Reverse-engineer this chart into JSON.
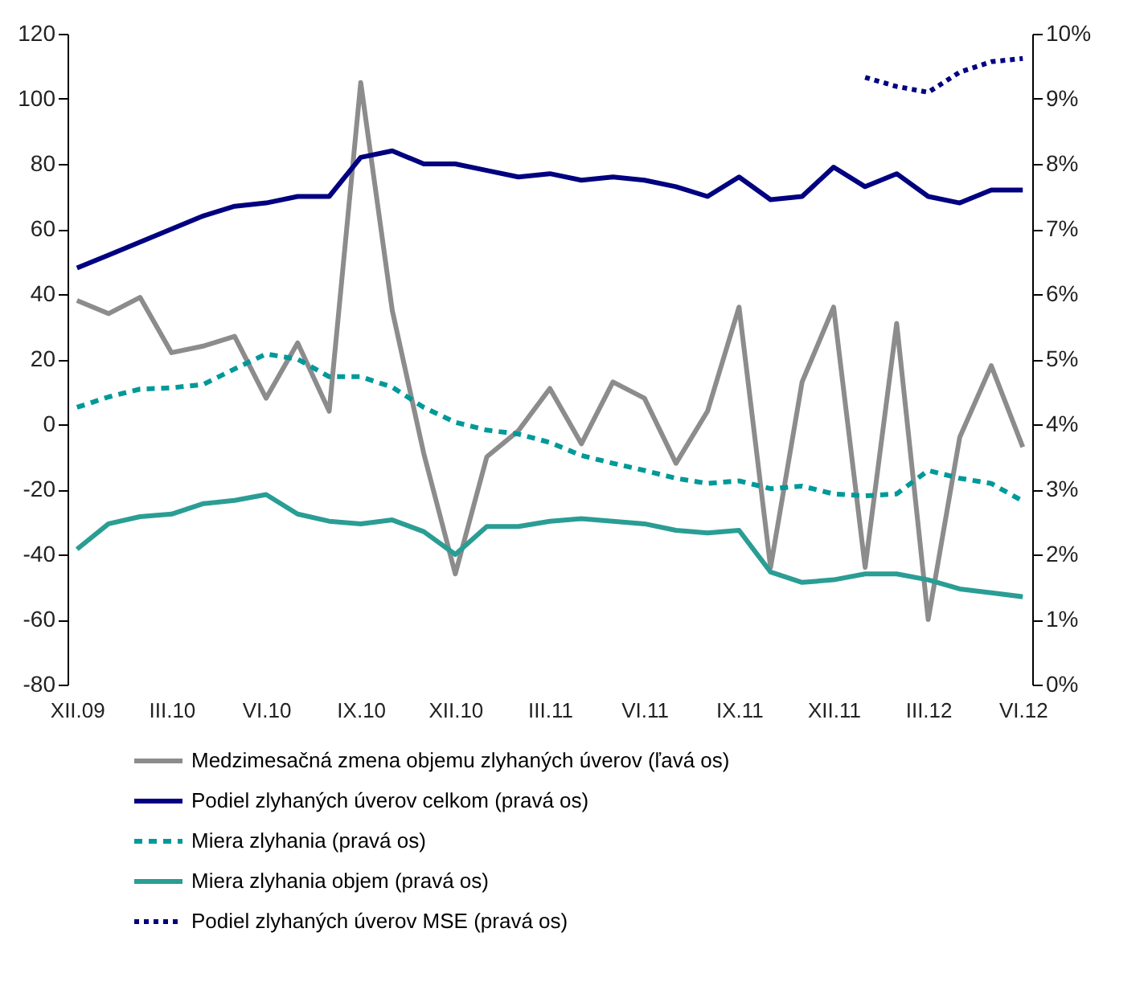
{
  "chart_data": {
    "type": "line",
    "categories": [
      "XII.09",
      null,
      null,
      "III.10",
      null,
      null,
      "VI.10",
      null,
      null,
      "IX.10",
      null,
      null,
      "XII.10",
      null,
      null,
      "III.11",
      null,
      null,
      "VI.11",
      null,
      null,
      "IX.11",
      null,
      null,
      "XII.11",
      null,
      null,
      "III.12",
      null,
      null,
      "VI.12"
    ],
    "series": [
      {
        "name": "Medzimesačná zmena objemu zlyhaných úverov (ľavá os)",
        "color": "#8c8c8c",
        "line_style": "solid",
        "values": [
          38,
          34,
          39,
          22,
          24,
          27,
          8,
          25,
          4,
          105,
          35,
          -9,
          -46,
          -10,
          -2,
          11,
          -6,
          13,
          8,
          -12,
          4,
          36,
          -44,
          13,
          36,
          -44,
          31,
          -60,
          -4,
          18,
          -7
        ]
      },
      {
        "name": "Podiel zlyhaných úverov celkom (pravá os)",
        "color": "#000080",
        "axis": "y2",
        "line_style": "solid",
        "values": [
          6.4,
          6.6,
          6.8,
          7.0,
          7.2,
          7.35,
          7.4,
          7.5,
          7.5,
          8.1,
          8.2,
          8.0,
          8.0,
          7.9,
          7.8,
          7.85,
          7.75,
          7.8,
          7.75,
          7.65,
          7.5,
          7.8,
          7.45,
          7.5,
          7.95,
          7.65,
          7.85,
          7.5,
          7.4,
          7.6,
          7.6
        ]
      },
      {
        "name": "Miera zlyhania (pravá os)",
        "color": "#009999",
        "axis": "y2",
        "line_style": "dashed",
        "values": [
          4.26,
          4.42,
          4.54,
          4.56,
          4.61,
          4.85,
          5.08,
          5.0,
          4.73,
          4.73,
          4.57,
          4.26,
          4.03,
          3.91,
          3.85,
          3.72,
          3.52,
          3.4,
          3.29,
          3.17,
          3.09,
          3.13,
          3.01,
          3.05,
          2.93,
          2.9,
          2.93,
          3.29,
          3.17,
          3.09,
          2.82
        ]
      },
      {
        "name": "Miera zlyhania objem (pravá os)",
        "color": "#2a9d94",
        "axis": "y2",
        "line_style": "solid",
        "values": [
          2.08,
          2.47,
          2.58,
          2.62,
          2.78,
          2.83,
          2.92,
          2.62,
          2.51,
          2.47,
          2.53,
          2.35,
          2.0,
          2.43,
          2.43,
          2.51,
          2.55,
          2.51,
          2.47,
          2.37,
          2.33,
          2.37,
          1.73,
          1.57,
          1.61,
          1.7,
          1.7,
          1.61,
          1.47,
          1.41,
          1.35
        ]
      },
      {
        "name": "Podiel zlyhaných úverov MSE (pravá os)",
        "color": "#000080",
        "axis": "y2",
        "line_style": "dotted",
        "values": [
          null,
          null,
          null,
          null,
          null,
          null,
          null,
          null,
          null,
          null,
          null,
          null,
          null,
          null,
          null,
          null,
          null,
          null,
          null,
          null,
          null,
          null,
          null,
          null,
          null,
          9.33,
          9.19,
          9.1,
          9.41,
          9.57,
          9.62
        ]
      }
    ],
    "ylim": [
      -80,
      120
    ],
    "yticks": [
      -80,
      -60,
      -40,
      -20,
      0,
      20,
      40,
      60,
      80,
      100,
      120
    ],
    "y2lim": [
      0,
      10
    ],
    "y2ticks": [
      {
        "value": 0,
        "label": "0%"
      },
      {
        "value": 1,
        "label": "1%"
      },
      {
        "value": 2,
        "label": "2%"
      },
      {
        "value": 3,
        "label": "3%"
      },
      {
        "value": 4,
        "label": "4%"
      },
      {
        "value": 5,
        "label": "5%"
      },
      {
        "value": 6,
        "label": "6%"
      },
      {
        "value": 7,
        "label": "7%"
      },
      {
        "value": 8,
        "label": "8%"
      },
      {
        "value": 9,
        "label": "9%"
      },
      {
        "value": 10,
        "label": "10%"
      }
    ],
    "grid": false,
    "legend": "bottom",
    "marker": "none"
  }
}
